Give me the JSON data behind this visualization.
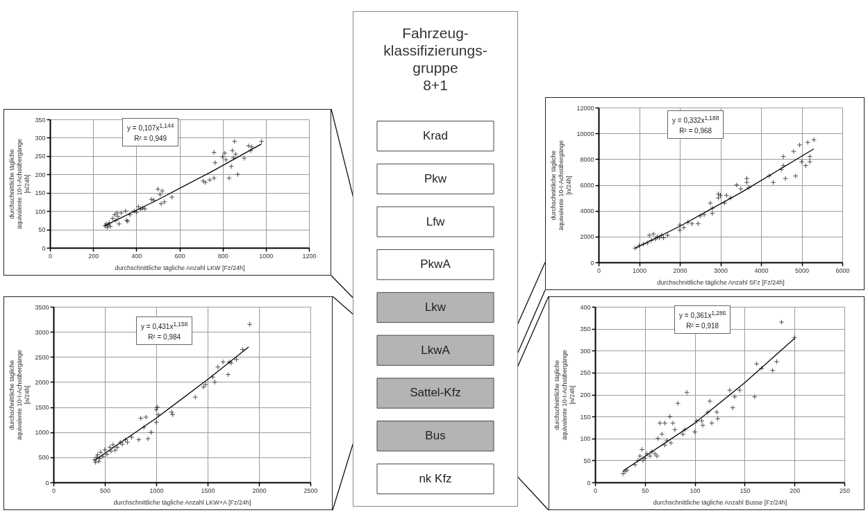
{
  "chart_data": [
    {
      "type": "scatter",
      "xlabel": "durchschnittliche tägliche Anzahl LKW [Fz/24h]",
      "ylabel": "durchschnittliche tägliche\näquivalente 10-t-Achsübergänge\n[n/24h]",
      "xlim": [
        0,
        1200
      ],
      "xticks": [
        0,
        200,
        400,
        600,
        800,
        1000,
        1200
      ],
      "ylim": [
        0,
        350
      ],
      "yticks": [
        0,
        50,
        100,
        150,
        200,
        250,
        300,
        350
      ],
      "grid": true,
      "marker": "cross",
      "annotations": [
        "y = 0,107x$^{1,144}$",
        "R² = 0,949"
      ],
      "series": [
        {
          "color": "#000000",
          "x": [
            255,
            260,
            265,
            270,
            275,
            280,
            290,
            300,
            305,
            310,
            315,
            320,
            330,
            350,
            355,
            360,
            370,
            390,
            400,
            410,
            420,
            430,
            440,
            470,
            480,
            500,
            510,
            520,
            515,
            530,
            565,
            710,
            720,
            740,
            760,
            760,
            765,
            800,
            810,
            815,
            830,
            845,
            840,
            850,
            855,
            860,
            870,
            900,
            920,
            930,
            935,
            980
          ],
          "values": [
            60,
            65,
            55,
            62,
            68,
            58,
            80,
            90,
            75,
            95,
            85,
            65,
            95,
            100,
            75,
            72,
            90,
            100,
            97,
            112,
            105,
            108,
            106,
            132,
            130,
            160,
            145,
            155,
            120,
            125,
            138,
            182,
            178,
            185,
            190,
            260,
            232,
            248,
            258,
            240,
            190,
            265,
            222,
            245,
            290,
            255,
            200,
            244,
            278,
            265,
            275,
            290
          ]
        },
        {
          "type": "line",
          "marker": "none",
          "color": "#000000",
          "x": [
            250,
            500,
            750,
            980
          ],
          "values": [
            59,
            131,
            208,
            283
          ]
        }
      ]
    },
    {
      "type": "other",
      "title": "Fahrzeug-\nklassifizierungs-\ngruppe\n8+1",
      "categories": [
        "Krad",
        "Pkw",
        "Lfw",
        "PkwA",
        "Lkw",
        "LkwA",
        "Sattel-Kfz",
        "Bus",
        "nk Kfz"
      ],
      "colors": [
        "#ffffff",
        "#ffffff",
        "#ffffff",
        "#ffffff",
        "#b4b4b4",
        "#b4b4b4",
        "#b4b4b4",
        "#b4b4b4",
        "#ffffff"
      ]
    },
    {
      "type": "scatter",
      "xlabel": "durchschnittliche tägliche Anzahl SFz [Fz/24h]",
      "ylabel": "durchschnittliche tägliche\näquivalente 10-t-Achsübergänge\n[n/24h]",
      "xlim": [
        0,
        6000
      ],
      "xticks": [
        0,
        1000,
        2000,
        3000,
        4000,
        5000,
        6000
      ],
      "ylim": [
        0,
        12000
      ],
      "yticks": [
        0,
        2000,
        4000,
        6000,
        8000,
        10000,
        12000
      ],
      "grid": true,
      "marker": "cross",
      "annotations": [
        "y = 0,332x$^{1,188}$",
        "R² = 0,968"
      ],
      "series": [
        {
          "color": "#000000",
          "x": [
            900,
            1000,
            1100,
            1200,
            1250,
            1300,
            1350,
            1400,
            1450,
            1500,
            1550,
            1600,
            1700,
            2000,
            2000,
            2100,
            2200,
            2300,
            2450,
            2500,
            2600,
            2750,
            2800,
            2800,
            2950,
            2950,
            3000,
            3100,
            3150,
            3250,
            3400,
            3500,
            3650,
            3700,
            3650,
            4200,
            4300,
            4500,
            4550,
            4550,
            4600,
            4800,
            4850,
            4950,
            5000,
            5100,
            5150,
            5200,
            5200,
            5300
          ],
          "values": [
            1100,
            1300,
            1400,
            1500,
            2100,
            1700,
            2200,
            1800,
            2000,
            1900,
            2100,
            1900,
            2100,
            2500,
            2900,
            2700,
            3100,
            3000,
            3000,
            3600,
            3700,
            4600,
            3800,
            4200,
            5000,
            5300,
            5200,
            4600,
            5200,
            5000,
            6000,
            5700,
            6200,
            5800,
            6500,
            6700,
            6200,
            7200,
            7500,
            8200,
            6500,
            8600,
            6700,
            9100,
            7800,
            7500,
            9300,
            7800,
            8200,
            9500
          ]
        },
        {
          "type": "line",
          "marker": "none",
          "color": "#000000",
          "x": [
            900,
            2000,
            3500,
            5300
          ],
          "values": [
            1100,
            2800,
            5400,
            8800
          ]
        }
      ]
    },
    {
      "type": "scatter",
      "xlabel": "durchschnittliche tägliche Anzahl LKW+A [Fz/24h]",
      "ylabel": "durchschnittliche tägliche\näquivalente 10-t-Achsübergänge\n[n/24h]",
      "xlim": [
        0,
        2500
      ],
      "xticks": [
        0,
        500,
        1000,
        1500,
        2000,
        2500
      ],
      "ylim": [
        0,
        3500
      ],
      "yticks": [
        0,
        500,
        1000,
        1500,
        2000,
        2500,
        3000,
        3500
      ],
      "grid": true,
      "marker": "cross",
      "annotations": [
        "y = 0,431x$^{1,158}$",
        "R² = 0,984"
      ],
      "series": [
        {
          "color": "#000000",
          "x": [
            400,
            410,
            420,
            430,
            440,
            450,
            460,
            480,
            500,
            520,
            550,
            560,
            580,
            600,
            620,
            650,
            670,
            700,
            720,
            760,
            830,
            850,
            880,
            900,
            920,
            950,
            1000,
            1000,
            1010,
            1020,
            1150,
            1160,
            1380,
            1460,
            1480,
            1550,
            1570,
            1600,
            1650,
            1700,
            1710,
            1730,
            1780,
            1840,
            1910
          ],
          "values": [
            450,
            400,
            500,
            550,
            420,
            480,
            600,
            520,
            650,
            560,
            700,
            620,
            750,
            640,
            700,
            800,
            760,
            850,
            800,
            900,
            850,
            1280,
            1100,
            1300,
            870,
            1000,
            1200,
            1450,
            1500,
            1350,
            1400,
            1350,
            1700,
            1900,
            1950,
            2100,
            2000,
            2300,
            2400,
            2150,
            2400,
            2380,
            2450,
            2650,
            3150
          ]
        },
        {
          "type": "line",
          "marker": "none",
          "color": "#000000",
          "x": [
            400,
            1000,
            1500,
            1900
          ],
          "values": [
            440,
            1280,
            2050,
            2700
          ]
        }
      ]
    },
    {
      "type": "scatter",
      "xlabel": "durchschnittliche tägliche Anzahl Busse [Fz/24h]",
      "ylabel": "durchschnittliche tägliche\näquivalente 10-t-Achsübergänge\n[n/24h]",
      "xlim": [
        0,
        250
      ],
      "xticks": [
        0,
        50,
        100,
        150,
        200,
        250
      ],
      "ylim": [
        0,
        400
      ],
      "yticks": [
        0,
        50,
        100,
        150,
        200,
        250,
        300,
        350,
        400
      ],
      "grid": true,
      "marker": "cross",
      "annotations": [
        "y = 0,361x$^{1,286}$",
        "R² = 0,918"
      ],
      "series": [
        {
          "color": "#000000",
          "x": [
            28,
            30,
            32,
            40,
            43,
            45,
            47,
            48,
            50,
            52,
            55,
            57,
            60,
            62,
            63,
            65,
            67,
            70,
            70,
            72,
            75,
            76,
            78,
            80,
            83,
            88,
            90,
            92,
            100,
            102,
            107,
            108,
            113,
            115,
            117,
            122,
            123,
            135,
            138,
            140,
            145,
            160,
            162,
            167,
            178,
            182,
            187,
            200
          ],
          "values": [
            20,
            25,
            28,
            40,
            50,
            60,
            75,
            50,
            55,
            65,
            60,
            70,
            65,
            60,
            100,
            135,
            110,
            135,
            85,
            95,
            150,
            90,
            135,
            120,
            180,
            110,
            120,
            205,
            115,
            140,
            140,
            130,
            160,
            185,
            135,
            160,
            145,
            210,
            170,
            195,
            210,
            195,
            270,
            260,
            255,
            275,
            365,
            330
          ]
        },
        {
          "type": "line",
          "marker": "none",
          "color": "#000000",
          "x": [
            28,
            100,
            150,
            200
          ],
          "values": [
            26,
            135,
            227,
            328
          ]
        }
      ]
    }
  ]
}
